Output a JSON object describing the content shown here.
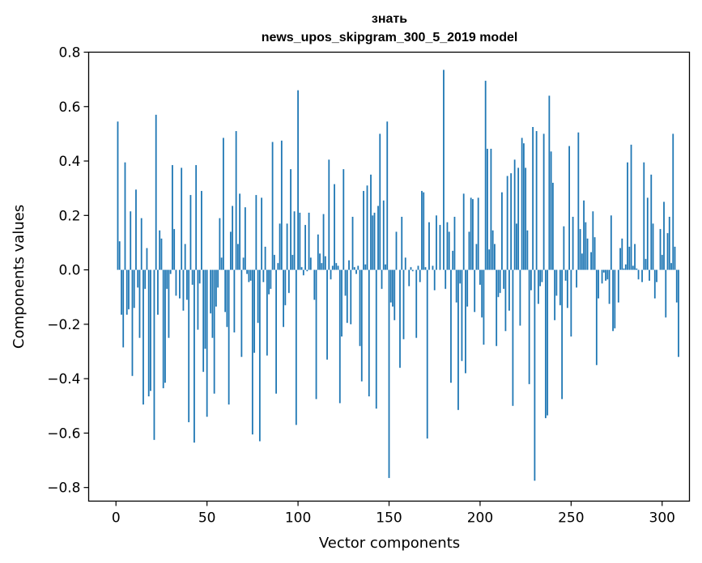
{
  "chart_data": {
    "type": "bar",
    "title_line1": "знать",
    "title_line2": "news_upos_skipgram_300_5_2019 model",
    "xlabel": "Vector components",
    "ylabel": "Components values",
    "xlim": [
      -15,
      315
    ],
    "ylim": [
      -0.85,
      0.8
    ],
    "x_ticks": [
      0,
      50,
      100,
      150,
      200,
      250,
      300
    ],
    "x_tick_labels": [
      "0",
      "50",
      "100",
      "150",
      "200",
      "250",
      "300"
    ],
    "y_ticks": [
      -0.8,
      -0.6,
      -0.4,
      -0.2,
      0.0,
      0.2,
      0.4,
      0.6,
      0.8
    ],
    "y_tick_labels": [
      "−0.8",
      "−0.6",
      "−0.4",
      "−0.2",
      "0.0",
      "0.2",
      "0.4",
      "0.6",
      "0.8"
    ],
    "bar_color": "#1f77b4",
    "values": [
      0.0,
      0.545,
      0.105,
      -0.165,
      -0.285,
      0.395,
      -0.165,
      -0.145,
      0.215,
      -0.39,
      -0.14,
      0.295,
      -0.065,
      -0.25,
      0.19,
      -0.495,
      -0.07,
      0.08,
      -0.465,
      -0.445,
      0.0,
      -0.625,
      0.57,
      -0.165,
      0.145,
      0.115,
      -0.435,
      -0.415,
      -0.07,
      -0.25,
      -0.015,
      0.385,
      0.15,
      -0.095,
      0.0,
      -0.105,
      0.375,
      -0.15,
      0.095,
      -0.11,
      -0.56,
      0.275,
      -0.055,
      -0.635,
      0.385,
      -0.22,
      -0.05,
      0.29,
      -0.375,
      -0.29,
      -0.54,
      0.0,
      -0.16,
      -0.25,
      -0.455,
      -0.135,
      -0.065,
      0.19,
      0.045,
      0.485,
      -0.155,
      -0.21,
      -0.495,
      0.14,
      0.235,
      -0.23,
      0.51,
      0.095,
      0.28,
      -0.32,
      0.045,
      0.23,
      -0.015,
      -0.045,
      -0.04,
      -0.605,
      -0.305,
      0.275,
      -0.195,
      -0.63,
      0.265,
      -0.045,
      0.085,
      -0.315,
      -0.09,
      -0.07,
      0.47,
      0.055,
      -0.455,
      0.025,
      0.17,
      0.475,
      -0.21,
      -0.13,
      0.17,
      -0.085,
      0.37,
      0.055,
      0.215,
      -0.57,
      0.66,
      0.21,
      0.01,
      -0.02,
      0.165,
      -0.005,
      0.21,
      0.045,
      0.0,
      -0.11,
      -0.475,
      0.13,
      0.06,
      0.025,
      0.205,
      0.05,
      -0.33,
      0.405,
      -0.035,
      0.015,
      0.315,
      0.025,
      0.015,
      -0.49,
      -0.245,
      0.37,
      -0.095,
      -0.195,
      0.035,
      -0.2,
      0.195,
      0.01,
      -0.015,
      0.015,
      -0.28,
      -0.41,
      0.29,
      0.02,
      0.31,
      -0.465,
      0.35,
      0.2,
      0.21,
      -0.51,
      0.235,
      0.5,
      -0.07,
      0.255,
      0.02,
      0.545,
      -0.765,
      -0.12,
      -0.135,
      -0.185,
      0.14,
      0.0,
      -0.36,
      0.195,
      -0.255,
      0.045,
      0.0,
      -0.06,
      0.01,
      -0.005,
      0.0,
      -0.25,
      0.015,
      -0.045,
      0.29,
      0.285,
      0.01,
      -0.62,
      0.175,
      0.0,
      0.015,
      -0.075,
      0.2,
      0.0,
      0.165,
      0.0,
      0.735,
      -0.07,
      0.175,
      0.14,
      -0.415,
      0.07,
      0.195,
      -0.12,
      -0.515,
      -0.05,
      -0.335,
      0.28,
      -0.38,
      -0.135,
      0.14,
      0.265,
      0.26,
      -0.155,
      0.095,
      0.265,
      -0.055,
      -0.175,
      -0.275,
      0.695,
      0.445,
      0.075,
      0.445,
      0.145,
      0.095,
      -0.28,
      -0.1,
      -0.085,
      0.285,
      -0.07,
      -0.225,
      0.345,
      -0.15,
      0.355,
      -0.5,
      0.405,
      0.17,
      0.375,
      -0.205,
      0.485,
      0.465,
      0.375,
      0.145,
      -0.42,
      -0.075,
      0.525,
      -0.775,
      0.51,
      -0.125,
      -0.06,
      -0.045,
      0.5,
      -0.545,
      -0.535,
      0.64,
      0.435,
      0.32,
      -0.185,
      -0.095,
      0.0,
      -0.13,
      -0.475,
      0.16,
      -0.04,
      -0.14,
      0.455,
      -0.245,
      0.195,
      0.0,
      -0.065,
      0.505,
      0.15,
      0.06,
      0.255,
      0.175,
      0.115,
      0.0,
      0.065,
      0.215,
      0.12,
      -0.35,
      -0.105,
      0.0,
      -0.05,
      -0.01,
      -0.04,
      -0.035,
      -0.125,
      0.2,
      -0.225,
      -0.215,
      0.0,
      -0.12,
      0.08,
      0.115,
      0.005,
      0.02,
      0.395,
      0.085,
      0.46,
      0.015,
      0.095,
      0.005,
      -0.035,
      0.0,
      -0.045,
      0.395,
      0.04,
      0.265,
      -0.04,
      0.35,
      0.17,
      -0.105,
      -0.045,
      0.0,
      0.15,
      0.055,
      0.25,
      -0.175,
      0.135,
      0.195,
      0.025,
      0.5,
      0.085,
      -0.12,
      -0.32
    ]
  }
}
